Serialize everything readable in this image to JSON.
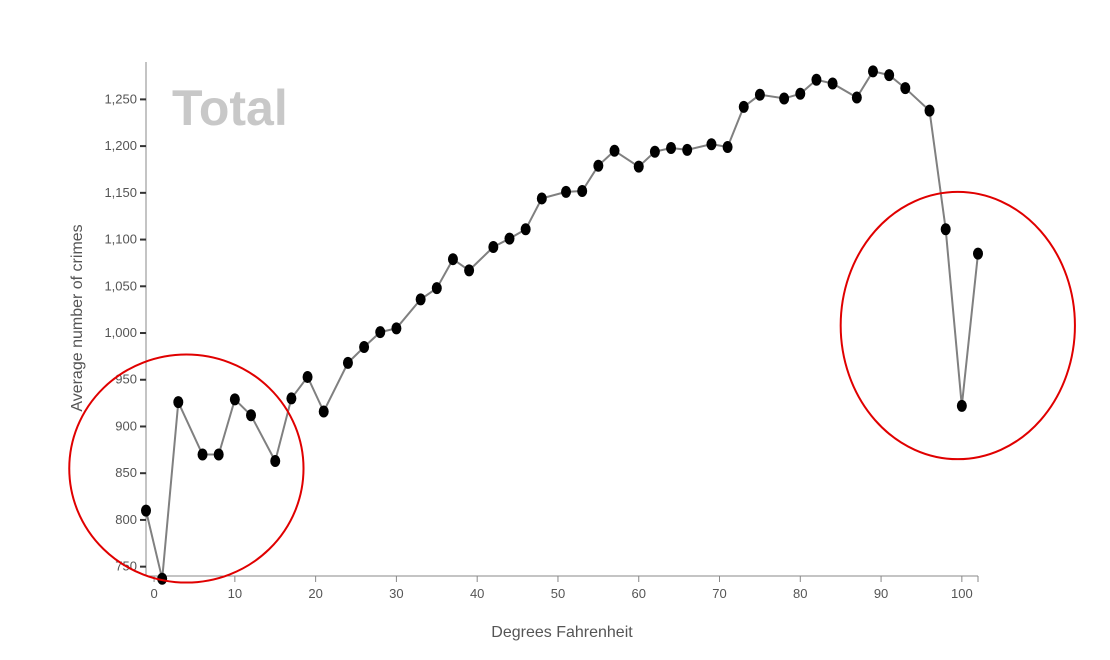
{
  "chart_data": {
    "type": "line",
    "title": "Total",
    "xlabel": "Degrees Fahrenheit",
    "ylabel": "Average number of crimes",
    "xlim": [
      -1,
      102
    ],
    "ylim": [
      740,
      1290
    ],
    "x_ticks": [
      0,
      10,
      20,
      30,
      40,
      50,
      60,
      70,
      80,
      90,
      100
    ],
    "x_tick_labels": [
      "0",
      "10",
      "20",
      "30",
      "40",
      "50",
      "60",
      "70",
      "80",
      "90",
      "100"
    ],
    "y_ticks": [
      750,
      800,
      850,
      900,
      950,
      1000,
      1050,
      1100,
      1150,
      1200,
      1250
    ],
    "y_tick_labels": [
      "750",
      "800",
      "850",
      "900",
      "950",
      "1,000",
      "1,050",
      "1,100",
      "1,150",
      "1,200",
      "1,250"
    ],
    "grid": false,
    "series": [
      {
        "x": [
          -1,
          1,
          3,
          6,
          8,
          10,
          12,
          15,
          17,
          19,
          21,
          24,
          26,
          28,
          30,
          33,
          35,
          37,
          39,
          42,
          44,
          46,
          48,
          51,
          53,
          55,
          57,
          60,
          62,
          64,
          66,
          69,
          71,
          73,
          75,
          78,
          80,
          82,
          84,
          87,
          89,
          91,
          93,
          96,
          98,
          100,
          102
        ],
        "y": [
          810,
          737,
          926,
          870,
          870,
          929,
          912,
          863,
          930,
          953,
          916,
          968,
          985,
          1001,
          1005,
          1036,
          1048,
          1079,
          1067,
          1092,
          1101,
          1111,
          1144,
          1151,
          1152,
          1179,
          1195,
          1178,
          1194,
          1198,
          1196,
          1202,
          1199,
          1242,
          1255,
          1251,
          1256,
          1271,
          1267,
          1252,
          1280,
          1276,
          1262,
          1238,
          1111,
          922,
          1085
        ],
        "color": "#808080",
        "marker_color": "#000000"
      }
    ],
    "annotations": [
      {
        "type": "ellipse",
        "color": "#e00000",
        "center_x": 4,
        "center_y": 855,
        "radius_x": 14.5,
        "radius_y": 122
      },
      {
        "type": "ellipse",
        "color": "#e00000",
        "center_x": 99.5,
        "center_y": 1008,
        "radius_x": 14.5,
        "radius_y": 143
      }
    ]
  }
}
